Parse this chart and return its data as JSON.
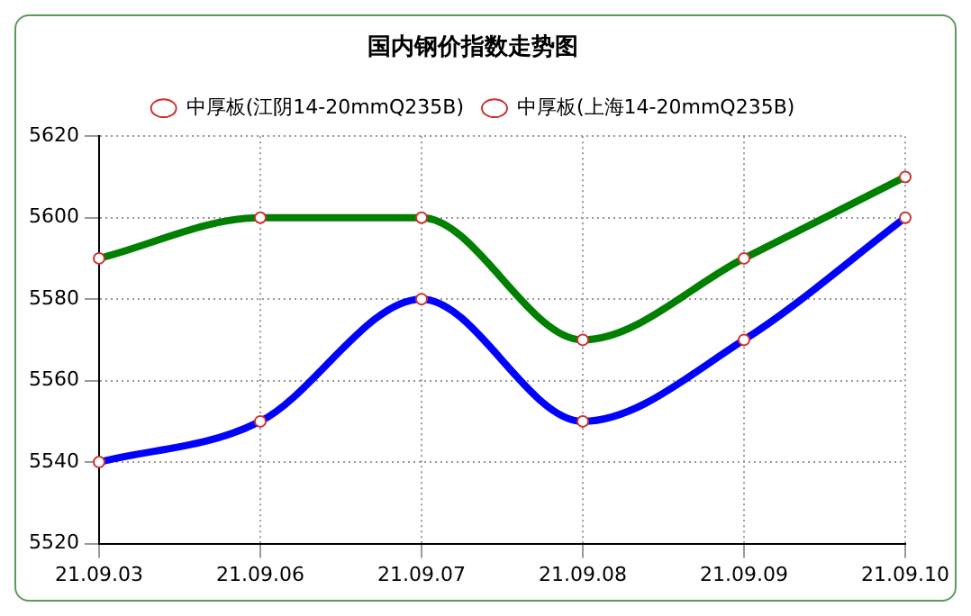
{
  "chart_data": {
    "type": "line",
    "title": "国内钢价指数走势图",
    "categories": [
      "21.09.03",
      "21.09.06",
      "21.09.07",
      "21.09.08",
      "21.09.09",
      "21.09.10"
    ],
    "series": [
      {
        "name": "中厚板(江阴14-20mmQ235B)",
        "color": "#008000",
        "values": [
          5590,
          5600,
          5600,
          5570,
          5590,
          5610
        ]
      },
      {
        "name": "中厚板(上海14-20mmQ235B)",
        "color": "#0000ff",
        "values": [
          5540,
          5550,
          5580,
          5550,
          5570,
          5600
        ]
      }
    ],
    "ylim": [
      5520,
      5620
    ],
    "yticks": [
      5520,
      5540,
      5560,
      5580,
      5600,
      5620
    ],
    "grid": true,
    "legend": "top",
    "marker": "circle",
    "line_style": "solid"
  }
}
